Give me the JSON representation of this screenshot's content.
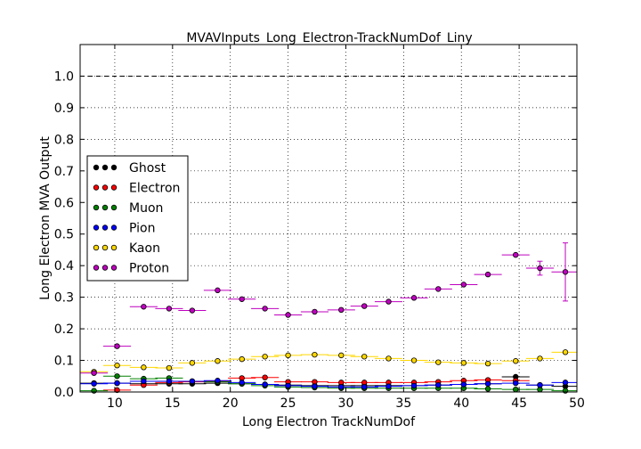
{
  "chart_data": {
    "type": "scatter",
    "title": "MVAVInputs_Long_Electron-TrackNumDof_Liny",
    "xlabel": "Long Electron TrackNumDof",
    "ylabel": "Long Electron MVA Output",
    "xlim": [
      7,
      50
    ],
    "ylim": [
      0,
      1.1
    ],
    "xticks": [
      "10",
      "15",
      "20",
      "25",
      "30",
      "35",
      "40",
      "45",
      "50"
    ],
    "yticks": [
      "0.0",
      "0.1",
      "0.2",
      "0.3",
      "0.4",
      "0.5",
      "0.6",
      "0.7",
      "0.8",
      "0.9",
      "1.0"
    ],
    "grid": true,
    "reference_line": 1.0,
    "legend_position": "center-left",
    "bin_half_width": 1.2,
    "x": [
      8.2,
      10.2,
      12.5,
      14.7,
      16.7,
      18.9,
      21.0,
      23.0,
      25.0,
      27.3,
      29.6,
      31.6,
      33.7,
      35.9,
      38.0,
      40.2,
      42.3,
      44.7,
      46.8,
      49.0
    ],
    "series": [
      {
        "name": "Ghost",
        "color": "#000000",
        "values": [
          0.028,
          0.028,
          0.026,
          0.026,
          0.026,
          0.028,
          0.026,
          0.024,
          0.022,
          0.02,
          0.02,
          0.02,
          0.02,
          0.02,
          0.022,
          0.024,
          0.026,
          0.048,
          0.022,
          0.018
        ]
      },
      {
        "name": "Electron",
        "color": "#ff0000",
        "values": [
          null,
          0.006,
          0.022,
          0.03,
          0.032,
          0.034,
          0.044,
          0.046,
          0.032,
          0.032,
          0.03,
          0.03,
          0.03,
          0.03,
          0.032,
          0.036,
          0.038,
          0.036,
          null,
          null
        ]
      },
      {
        "name": "Muon",
        "color": "#008000",
        "values": [
          0.004,
          0.05,
          0.042,
          0.044,
          0.034,
          0.032,
          0.026,
          0.02,
          0.016,
          0.014,
          0.012,
          0.012,
          0.012,
          0.012,
          0.012,
          0.012,
          0.01,
          0.008,
          0.008,
          0.004
        ]
      },
      {
        "name": "Pion",
        "color": "#0000ff",
        "values": [
          0.026,
          0.028,
          0.034,
          0.034,
          0.034,
          0.036,
          0.03,
          0.024,
          0.02,
          0.018,
          0.016,
          0.016,
          0.018,
          0.02,
          0.022,
          0.024,
          0.026,
          0.028,
          0.022,
          0.03
        ]
      },
      {
        "name": "Kaon",
        "color": "#ffd700",
        "values": [
          0.064,
          0.084,
          0.078,
          0.076,
          0.092,
          0.098,
          0.104,
          0.112,
          0.116,
          0.118,
          0.116,
          0.112,
          0.106,
          0.1,
          0.094,
          0.092,
          0.09,
          0.098,
          0.106,
          0.126
        ]
      },
      {
        "name": "Proton",
        "color": "#bf00bf",
        "values": [
          0.06,
          0.145,
          0.27,
          0.264,
          0.258,
          0.322,
          0.294,
          0.264,
          0.244,
          0.254,
          0.26,
          0.272,
          0.286,
          0.298,
          0.326,
          0.34,
          0.372,
          0.434,
          0.392,
          0.38
        ],
        "errors": [
          0,
          0,
          0,
          0,
          0,
          0,
          0,
          0,
          0,
          0,
          0,
          0,
          0,
          0,
          0,
          0,
          0,
          0,
          0.022,
          0.092
        ]
      }
    ]
  }
}
